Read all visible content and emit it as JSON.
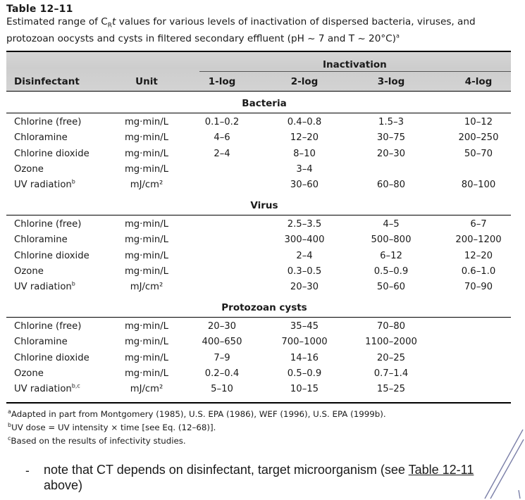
{
  "table": {
    "number": "Table 12–11",
    "caption": {
      "pre": "Estimated range of C",
      "sub": "R",
      "italic": "t",
      "rest": " values for various levels of inactivation of dispersed bacteria, viruses, and protozoan oocysts and cysts in filtered secondary effluent (pH ~ 7 and T ~ 20°C)",
      "mark": "a"
    },
    "headers": {
      "disinfectant": "Disinfectant",
      "unit": "Unit",
      "inactivation": "Inactivation",
      "levels": [
        "1-log",
        "2-log",
        "3-log",
        "4-log"
      ]
    },
    "sections": [
      {
        "label": "Bacteria",
        "rows": [
          {
            "name": "Chlorine (free)",
            "unit": "mg·min/L",
            "v": [
              "0.1–0.2",
              "0.4–0.8",
              "1.5–3",
              "10–12"
            ]
          },
          {
            "name": "Chloramine",
            "unit": "mg·min/L",
            "v": [
              "4–6",
              "12–20",
              "30–75",
              "200–250"
            ]
          },
          {
            "name": "Chlorine dioxide",
            "unit": "mg·min/L",
            "v": [
              "2–4",
              "8–10",
              "20–30",
              "50–70"
            ]
          },
          {
            "name": "Ozone",
            "unit": "mg·min/L",
            "v": [
              "",
              "3–4",
              "",
              ""
            ]
          },
          {
            "name": "UV radiation",
            "name_sup": "b",
            "unit": "mJ/cm²",
            "v": [
              "",
              "30–60",
              "60–80",
              "80–100"
            ]
          }
        ]
      },
      {
        "label": "Virus",
        "rows": [
          {
            "name": "Chlorine (free)",
            "unit": "mg·min/L",
            "v": [
              "",
              "2.5–3.5",
              "4–5",
              "6–7"
            ]
          },
          {
            "name": "Chloramine",
            "unit": "mg·min/L",
            "v": [
              "",
              "300–400",
              "500–800",
              "200–1200"
            ]
          },
          {
            "name": "Chlorine dioxide",
            "unit": "mg·min/L",
            "v": [
              "",
              "2–4",
              "6–12",
              "12–20"
            ]
          },
          {
            "name": "Ozone",
            "unit": "mg·min/L",
            "v": [
              "",
              "0.3–0.5",
              "0.5–0.9",
              "0.6–1.0"
            ]
          },
          {
            "name": "UV radiation",
            "name_sup": "b",
            "unit": "mJ/cm²",
            "v": [
              "",
              "20–30",
              "50–60",
              "70–90"
            ]
          }
        ]
      },
      {
        "label": "Protozoan cysts",
        "rows": [
          {
            "name": "Chlorine (free)",
            "unit": "mg·min/L",
            "v": [
              "20–30",
              "35–45",
              "70–80",
              ""
            ]
          },
          {
            "name": "Chloramine",
            "unit": "mg·min/L",
            "v": [
              "400–650",
              "700–1000",
              "1100–2000",
              ""
            ]
          },
          {
            "name": "Chlorine dioxide",
            "unit": "mg·min/L",
            "v": [
              "7–9",
              "14–16",
              "20–25",
              ""
            ]
          },
          {
            "name": "Ozone",
            "unit": "mg·min/L",
            "v": [
              "0.2–0.4",
              "0.5–0.9",
              "0.7–1.4",
              ""
            ]
          },
          {
            "name": "UV radiation",
            "name_sup": "b,c",
            "unit": "mJ/cm²",
            "v": [
              "5–10",
              "10–15",
              "15–25",
              ""
            ]
          }
        ]
      }
    ],
    "footnotes": [
      {
        "mark": "a",
        "text": "Adapted in part from Montgomery (1985), U.S. EPA (1986), WEF (1996), U.S. EPA (1999b)."
      },
      {
        "mark": "b",
        "text": "UV dose = UV intensity × time [see Eq. (12–68)]."
      },
      {
        "mark": "c",
        "text": "Based on the results of infectivity studies."
      }
    ]
  },
  "bullet": {
    "dash": "-",
    "text_before": "note that CT depends on disinfectant, target microorganism (see ",
    "link_text": "Table 12-11",
    "text_after": " above)"
  }
}
